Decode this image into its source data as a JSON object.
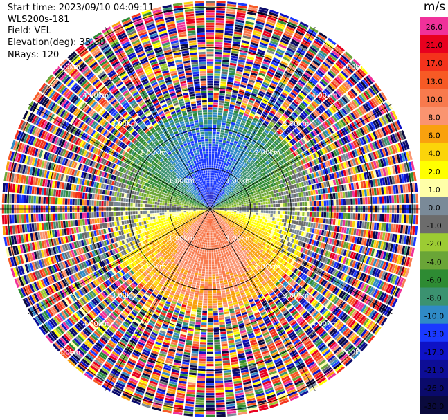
{
  "info": {
    "start_time": "Start time: 2023/09/10 04:09:11",
    "instrument": "WLS200s-181",
    "field": "Field: VEL",
    "elevation": "Elevation(deg): 35.30",
    "nrays": "NRays: 120"
  },
  "colorbar": {
    "unit": "m/s",
    "bands": [
      {
        "label": "26.0",
        "color": "#f0319a"
      },
      {
        "label": "21.0",
        "color": "#e8001f"
      },
      {
        "label": "17.0",
        "color": "#f4331c"
      },
      {
        "label": "13.0",
        "color": "#f75a25"
      },
      {
        "label": "10.0",
        "color": "#f87a4d"
      },
      {
        "label": "8.0",
        "color": "#fa9470"
      },
      {
        "label": "6.0",
        "color": "#f9a10e"
      },
      {
        "label": "4.0",
        "color": "#fbd40a"
      },
      {
        "label": "2.0",
        "color": "#ffff00"
      },
      {
        "label": "1.0",
        "color": "#ffffa8"
      },
      {
        "label": "0.0",
        "color": "#7a8a98"
      },
      {
        "label": "-1.0",
        "color": "#6c6c6c"
      },
      {
        "label": "-2.0",
        "color": "#9ccb33"
      },
      {
        "label": "-4.0",
        "color": "#6aa537"
      },
      {
        "label": "-6.0",
        "color": "#2e8b33"
      },
      {
        "label": "-8.0",
        "color": "#3b9270"
      },
      {
        "label": "-10.0",
        "color": "#2f8ac6"
      },
      {
        "label": "-13.0",
        "color": "#1a39ff"
      },
      {
        "label": "-17.0",
        "color": "#0e12c6"
      },
      {
        "label": "-21.0",
        "color": "#0d0d96"
      },
      {
        "label": "-26.0",
        "color": "#0a0a6b"
      },
      {
        "label": "-30.0",
        "color": "#0a0a3d"
      }
    ]
  },
  "range_labels": [
    "1.00km",
    "2.00km",
    "3.00km",
    "4.00km",
    "5.00km"
  ],
  "chart_data": {
    "type": "heatmap",
    "subtype": "polar PPI (plan position indicator)",
    "field": "VEL",
    "units": "m/s",
    "nrays": 120,
    "elevation_deg": 35.3,
    "start_time": "2023/09/10 04:09:11",
    "range_rings_km": [
      1,
      2,
      3,
      4,
      5
    ],
    "max_range_km": 5.2,
    "azimuth_lines_deg": [
      0,
      30,
      60,
      90,
      120,
      150,
      180,
      210,
      240,
      270,
      300,
      330
    ],
    "color_levels": [
      -30,
      -26,
      -21,
      -17,
      -13,
      -10,
      -8,
      -6,
      -4,
      -2,
      -1,
      0,
      1,
      2,
      4,
      6,
      8,
      10,
      13,
      17,
      21,
      26
    ],
    "pattern_description_levels": {
      "north_center_m_s": -13,
      "south_center_m_s": 17,
      "north_mid_m_s": -4,
      "south_mid_m_s": 4
    }
  }
}
